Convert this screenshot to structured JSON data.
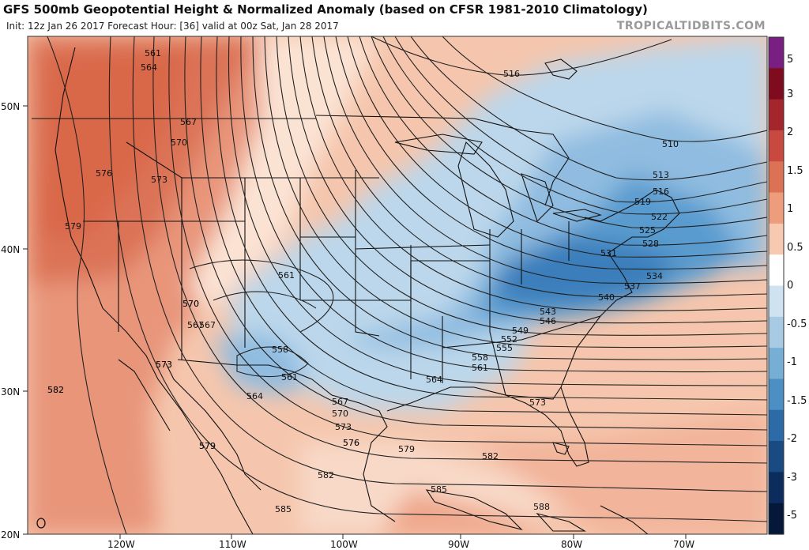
{
  "header": {
    "title": "GFS 500mb Geopotential Height & Normalized Anomaly (based on CFSR 1981-2010 Climatology)",
    "subtitle": "Init: 12z Jan 26 2017   Forecast Hour: [36]   valid at 00z Sat, Jan 28 2017",
    "brand": "TROPICALTIDBITS.COM"
  },
  "axes": {
    "latitudes": [
      "50N",
      "40N",
      "30N",
      "20N"
    ],
    "longitudes": [
      "120W",
      "110W",
      "100W",
      "90W",
      "80W",
      "70W"
    ]
  },
  "colorbar": {
    "labels": [
      "5",
      "3",
      "2",
      "1.5",
      "1",
      "0.5",
      "0",
      "-0.5",
      "-1",
      "-1.5",
      "-2",
      "-3",
      "-5"
    ],
    "colors": [
      "#7a1f82",
      "#7f0b1e",
      "#a3262c",
      "#c74940",
      "#dc7254",
      "#ed9c7c",
      "#f7c9b0",
      "#ffffff",
      "#cfe2ef",
      "#a8cbe3",
      "#77aed6",
      "#4c8fc4",
      "#2c6aa8",
      "#1a4a82",
      "#0b2c5c",
      "#06183a"
    ]
  },
  "contours": [
    {
      "label": "516"
    },
    {
      "label": "510"
    },
    {
      "label": "513"
    },
    {
      "label": "516"
    },
    {
      "label": "519"
    },
    {
      "label": "522"
    },
    {
      "label": "525"
    },
    {
      "label": "528"
    },
    {
      "label": "531"
    },
    {
      "label": "534"
    },
    {
      "label": "537"
    },
    {
      "label": "540"
    },
    {
      "label": "543"
    },
    {
      "label": "546"
    },
    {
      "label": "549"
    },
    {
      "label": "552"
    },
    {
      "label": "555"
    },
    {
      "label": "558"
    },
    {
      "label": "561"
    },
    {
      "label": "564"
    },
    {
      "label": "567"
    },
    {
      "label": "570"
    },
    {
      "label": "573"
    },
    {
      "label": "576"
    },
    {
      "label": "579"
    },
    {
      "label": "582"
    },
    {
      "label": "585"
    },
    {
      "label": "588"
    },
    {
      "label": "561"
    },
    {
      "label": "564"
    },
    {
      "label": "567"
    },
    {
      "label": "570"
    },
    {
      "label": "573"
    },
    {
      "label": "576"
    },
    {
      "label": "579"
    },
    {
      "label": "561"
    },
    {
      "label": "567"
    },
    {
      "label": "570"
    },
    {
      "label": "573"
    },
    {
      "label": "558"
    },
    {
      "label": "561"
    },
    {
      "label": "564"
    },
    {
      "label": "567"
    },
    {
      "label": "570"
    },
    {
      "label": "573"
    },
    {
      "label": "576"
    },
    {
      "label": "579"
    },
    {
      "label": "582"
    },
    {
      "label": "582"
    },
    {
      "label": "585"
    },
    {
      "label": "573"
    },
    {
      "label": "579"
    },
    {
      "label": "582"
    }
  ]
}
